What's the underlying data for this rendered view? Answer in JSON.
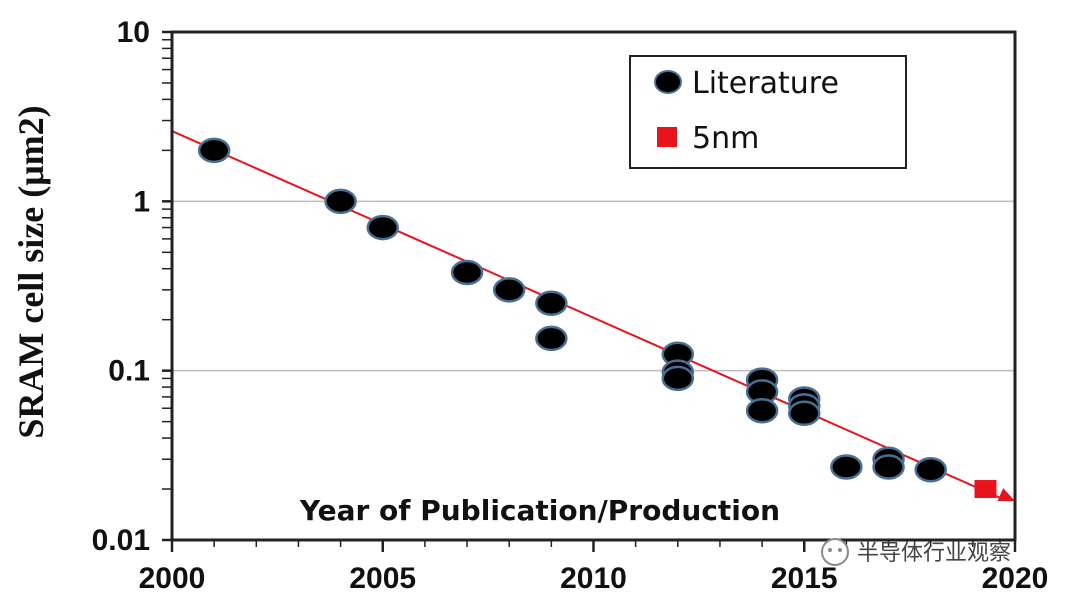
{
  "chart_data": {
    "type": "scatter",
    "ylabel": "SRAM cell size (μm2)",
    "xlabel": "Year of Publication/Production",
    "x_range": [
      2000,
      2020
    ],
    "y_range": [
      0.01,
      10
    ],
    "y_scale": "log",
    "x_ticks": [
      "2000",
      "2005",
      "2010",
      "2015",
      "2020"
    ],
    "y_ticks": [
      {
        "value": 10,
        "label": "10"
      },
      {
        "value": 1,
        "label": "1"
      },
      {
        "value": 0.1,
        "label": "0.1"
      },
      {
        "value": 0.01,
        "label": "0.01"
      }
    ],
    "grid": "horizontal",
    "legend_position": "top-right",
    "series": [
      {
        "name": "Literature",
        "marker": "circle",
        "color": "#000000",
        "points": [
          [
            2001,
            2.0
          ],
          [
            2004,
            1.0
          ],
          [
            2005,
            0.7
          ],
          [
            2007,
            0.38
          ],
          [
            2008,
            0.3
          ],
          [
            2009,
            0.25
          ],
          [
            2009,
            0.155
          ],
          [
            2012,
            0.125
          ],
          [
            2012,
            0.098
          ],
          [
            2012,
            0.09
          ],
          [
            2014,
            0.088
          ],
          [
            2014,
            0.075
          ],
          [
            2014,
            0.058
          ],
          [
            2015,
            0.068
          ],
          [
            2015,
            0.062
          ],
          [
            2015,
            0.056
          ],
          [
            2016,
            0.027
          ],
          [
            2017,
            0.03
          ],
          [
            2017,
            0.027
          ],
          [
            2018,
            0.026
          ]
        ]
      },
      {
        "name": "5nm",
        "marker": "square",
        "color": "#e8141c",
        "points": [
          [
            2019.3,
            0.02
          ]
        ]
      }
    ],
    "trendline": {
      "color": "#e8141c",
      "from": [
        2000,
        2.6
      ],
      "to": [
        2020,
        0.017
      ]
    }
  },
  "watermark": {
    "text": "半导体行业观察"
  }
}
